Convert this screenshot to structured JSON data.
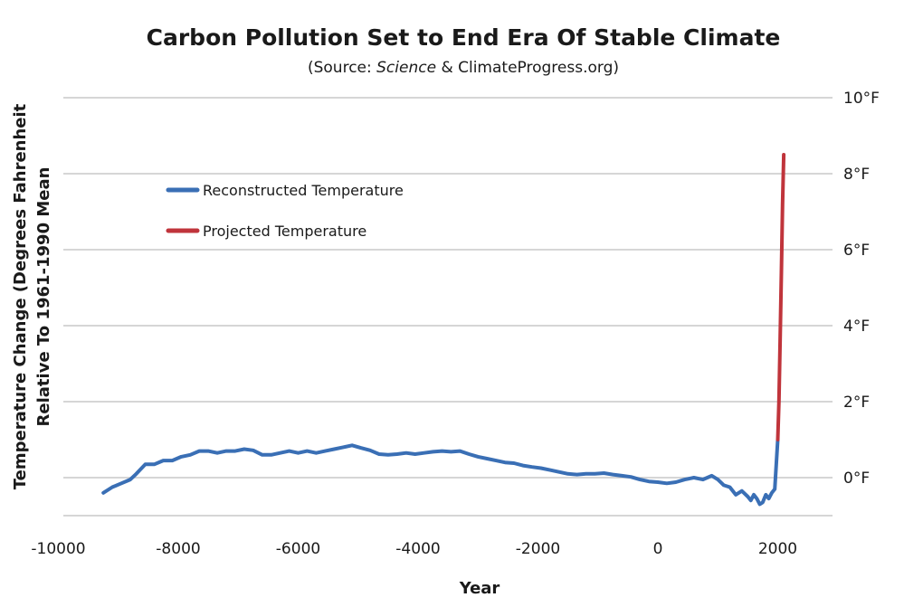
{
  "chart_data": {
    "type": "line",
    "title": "Carbon Pollution Set to End Era Of Stable Climate",
    "subtitle_prefix": "(Source: ",
    "subtitle_italic": "Science",
    "subtitle_suffix": " & ClimateProgress.org)",
    "xlabel": "Year",
    "ylabel_line1": "Temperature Change (Degrees Fahrenheit",
    "ylabel_line2": "Relative To 1961-1990 Mean",
    "xlim": [
      -10000,
      2800
    ],
    "ylim": [
      -1,
      10
    ],
    "x_ticks": [
      -10000,
      -8000,
      -6000,
      -4000,
      -2000,
      0,
      2000
    ],
    "x_tick_labels": [
      "-10000",
      "-8000",
      "-6000",
      "-4000",
      "-2000",
      "0",
      "2000"
    ],
    "y_ticks": [
      0,
      2,
      4,
      6,
      8,
      10
    ],
    "y_tick_labels": [
      "0°F",
      "2°F",
      "4°F",
      "6°F",
      "8°F",
      "10°F"
    ],
    "legend_position": "top-left",
    "grid": true,
    "series": [
      {
        "name": "Reconstructed Temperature",
        "color": "#3a6fb5",
        "x": [
          -9250,
          -9100,
          -8950,
          -8800,
          -8700,
          -8550,
          -8400,
          -8250,
          -8100,
          -7950,
          -7800,
          -7650,
          -7500,
          -7350,
          -7200,
          -7050,
          -6900,
          -6750,
          -6600,
          -6450,
          -6300,
          -6150,
          -6000,
          -5850,
          -5700,
          -5550,
          -5400,
          -5250,
          -5100,
          -4950,
          -4800,
          -4650,
          -4500,
          -4350,
          -4200,
          -4050,
          -3900,
          -3750,
          -3600,
          -3450,
          -3300,
          -3150,
          -3000,
          -2850,
          -2700,
          -2550,
          -2400,
          -2250,
          -2100,
          -1950,
          -1800,
          -1650,
          -1500,
          -1350,
          -1200,
          -1050,
          -900,
          -750,
          -600,
          -450,
          -300,
          -150,
          0,
          150,
          300,
          450,
          600,
          750,
          900,
          1000,
          1100,
          1200,
          1300,
          1400,
          1500,
          1550,
          1600,
          1650,
          1700,
          1750,
          1800,
          1850,
          1900,
          1950,
          2000
        ],
        "y": [
          -0.4,
          -0.25,
          -0.15,
          -0.05,
          0.1,
          0.35,
          0.35,
          0.45,
          0.45,
          0.55,
          0.6,
          0.7,
          0.7,
          0.65,
          0.7,
          0.7,
          0.75,
          0.72,
          0.6,
          0.6,
          0.65,
          0.7,
          0.65,
          0.7,
          0.65,
          0.7,
          0.75,
          0.8,
          0.85,
          0.78,
          0.72,
          0.62,
          0.6,
          0.62,
          0.65,
          0.62,
          0.65,
          0.68,
          0.7,
          0.68,
          0.7,
          0.62,
          0.55,
          0.5,
          0.45,
          0.4,
          0.38,
          0.32,
          0.28,
          0.25,
          0.2,
          0.15,
          0.1,
          0.08,
          0.1,
          0.1,
          0.12,
          0.08,
          0.05,
          0.02,
          -0.05,
          -0.1,
          -0.12,
          -0.15,
          -0.12,
          -0.05,
          0.0,
          -0.05,
          0.05,
          -0.05,
          -0.2,
          -0.25,
          -0.45,
          -0.35,
          -0.5,
          -0.6,
          -0.45,
          -0.55,
          -0.7,
          -0.65,
          -0.45,
          -0.55,
          -0.4,
          -0.3,
          1.0
        ]
      },
      {
        "name": "Projected Temperature",
        "color": "#c0343b",
        "x": [
          2000,
          2020,
          2040,
          2060,
          2080,
          2100
        ],
        "y": [
          1.0,
          2.0,
          3.6,
          5.4,
          7.2,
          8.5
        ]
      }
    ]
  }
}
